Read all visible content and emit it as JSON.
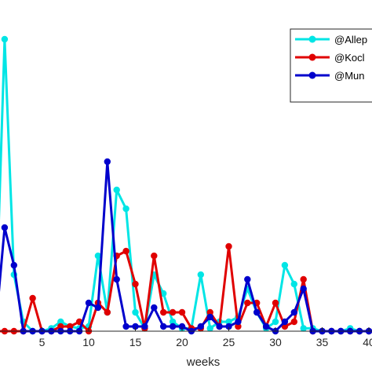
{
  "chart_data": {
    "type": "line",
    "title": "",
    "xlabel": "weeks",
    "ylabel": "",
    "xlim": [
      0,
      40
    ],
    "ylim": [
      0,
      31
    ],
    "grid": false,
    "legend_position": "top-right",
    "x_ticks": [
      5,
      10,
      15,
      20,
      25,
      30,
      35,
      40
    ],
    "x_tick_labels": [
      "5",
      "10",
      "15",
      "20",
      "25",
      "30",
      "35",
      "40"
    ],
    "x": [
      0,
      1,
      2,
      3,
      4,
      5,
      6,
      7,
      8,
      9,
      10,
      11,
      12,
      13,
      14,
      15,
      16,
      17,
      18,
      19,
      20,
      21,
      22,
      23,
      24,
      25,
      26,
      27,
      28,
      29,
      30,
      31,
      32,
      33,
      34,
      35,
      36,
      37,
      38,
      39,
      40
    ],
    "series": [
      {
        "name": "@Allep",
        "color": "#00e5e5",
        "values": [
          0,
          31,
          6,
          1,
          0,
          0,
          0.3,
          1,
          0.5,
          0.3,
          0.5,
          8,
          2,
          15,
          13,
          2,
          0.3,
          6,
          4,
          1,
          0.3,
          0.3,
          6,
          0.3,
          1,
          1,
          1.5,
          4.5,
          2,
          0.3,
          1,
          7,
          5,
          0.3,
          0.3,
          0,
          0,
          0,
          0.3,
          0,
          0
        ]
      },
      {
        "name": "@Kocl",
        "color": "#e00000",
        "values": [
          0,
          0,
          0,
          0,
          3.5,
          0,
          0,
          0.5,
          0.5,
          1,
          0,
          3,
          2,
          8,
          8.5,
          5,
          0.3,
          8,
          2,
          2,
          2,
          0.3,
          0.3,
          2,
          0.5,
          9,
          0.5,
          3,
          3,
          0.5,
          3,
          0.5,
          1,
          5.5,
          0,
          0,
          0,
          0,
          0,
          0,
          0
        ]
      },
      {
        "name": "@Mun",
        "color": "#0000cc",
        "values": [
          0,
          11,
          7,
          0,
          0,
          0,
          0,
          0,
          0,
          0,
          3,
          2.5,
          18,
          5.5,
          0.5,
          0.5,
          0.5,
          2.5,
          0.5,
          0.5,
          0.5,
          0,
          0.5,
          1.5,
          0.5,
          0.5,
          1,
          5.5,
          2,
          0.5,
          0,
          1,
          2,
          4.5,
          0,
          0,
          0,
          0,
          0,
          0,
          0
        ]
      }
    ]
  }
}
